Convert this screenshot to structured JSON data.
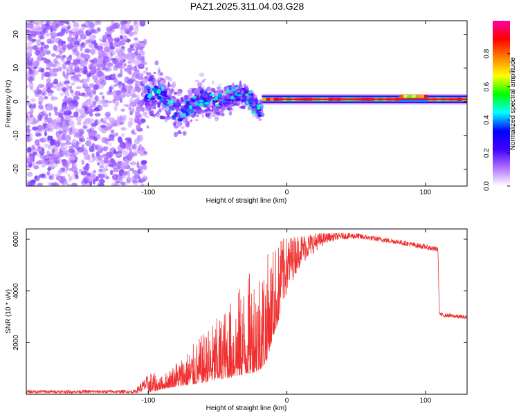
{
  "figure": {
    "title": "PAZ1.2025.311.04.03.G28"
  },
  "chart_data": [
    {
      "type": "heatmap",
      "name": "spectrogram",
      "xlabel": "Height of straight line (km)",
      "ylabel": "Frequency (Hz)",
      "xlim": [
        -188,
        130
      ],
      "ylim": [
        -25,
        24
      ],
      "xticks": [
        -100,
        0,
        100
      ],
      "xtick_labels": [
        "-100",
        "0",
        "100"
      ],
      "yticks": [
        -20,
        -10,
        0,
        10,
        20
      ],
      "ytick_labels": [
        "-20",
        "-10",
        "0",
        "10",
        "20"
      ],
      "features": {
        "noise_region_x": [
          -188,
          -102
        ],
        "scatter_region_x": [
          -102,
          -18
        ],
        "line_region_x": [
          -18,
          130
        ],
        "line_frequency_hz": 0.7,
        "line_frequency_high_segment": {
          "x": [
            80,
            100
          ],
          "frequency_hz": 1.6
        }
      },
      "colorbar": {
        "label": "Normalized spectral amplitude",
        "range": [
          0.0,
          1.0
        ],
        "ticks": [
          0.0,
          0.2,
          0.4,
          0.6,
          0.8
        ],
        "tick_labels": [
          "0.0",
          "0.2",
          "0.4",
          "0.6",
          "0.8"
        ],
        "colors": [
          "#ffffff",
          "#b070ff",
          "#4000ff",
          "#0000ff",
          "#00ffff",
          "#00ff00",
          "#ffff00",
          "#ff8000",
          "#ff0000",
          "#ff00a0"
        ]
      }
    },
    {
      "type": "line",
      "name": "snr",
      "xlabel": "Height of straight line (km)",
      "ylabel": "SNR (10 * v/v)",
      "xlim": [
        -188,
        130
      ],
      "ylim": [
        0,
        6400
      ],
      "xticks": [
        -100,
        0,
        100
      ],
      "xtick_labels": [
        "-100",
        "0",
        "100"
      ],
      "yticks": [
        2000,
        4000,
        6000
      ],
      "ytick_labels": [
        "2000",
        "4000",
        "6000"
      ],
      "color": "#f03030",
      "envelope": {
        "x": [
          -188,
          -110,
          -98,
          -90,
          -80,
          -70,
          -60,
          -50,
          -40,
          -30,
          -20,
          -15,
          -10,
          -5,
          0,
          5,
          10,
          20,
          30,
          40,
          50,
          60,
          80,
          100,
          109,
          110,
          111,
          120,
          130
        ],
        "low": [
          40,
          40,
          80,
          200,
          300,
          350,
          450,
          550,
          650,
          750,
          900,
          1200,
          2200,
          3000,
          3800,
          4500,
          5000,
          5500,
          5900,
          6000,
          6000,
          5950,
          5800,
          5600,
          5500,
          3100,
          3000,
          2950,
          2900
        ],
        "high": [
          160,
          160,
          900,
          700,
          1300,
          1800,
          2400,
          3000,
          3700,
          4500,
          5300,
          5400,
          5800,
          6000,
          6100,
          6150,
          6200,
          6250,
          6250,
          6250,
          6250,
          6150,
          6000,
          5800,
          5700,
          3200,
          3150,
          3100,
          3050
        ]
      }
    }
  ]
}
